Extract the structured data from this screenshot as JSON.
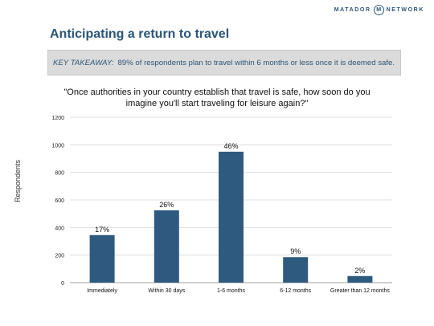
{
  "brand": {
    "left": "MATADOR",
    "right": "NETWORK",
    "logo_glyph": "M"
  },
  "slide_title": "Anticipating a return to travel",
  "takeaway": {
    "label": "KEY TAKEAWAY:",
    "text": "89% of respondents plan to travel within 6 months or less once it is deemed safe."
  },
  "colors": {
    "bar": "#2e5a80",
    "title": "#2b5577",
    "takeaway_text": "#2b5577",
    "grid": "#d9d9d9"
  },
  "chart_data": {
    "type": "bar",
    "title_line1": "\"Once authorities in your country establish that travel is safe, how soon do you",
    "title_line2": "imagine you'll start traveling for leisure again?\"",
    "xlabel": "",
    "ylabel": "Respondents",
    "ylim": [
      0,
      1200
    ],
    "yticks": [
      "0",
      "200",
      "400",
      "600",
      "800",
      "1000",
      "1200"
    ],
    "grid": true,
    "legend": "none",
    "categories": [
      "Immediately",
      "Within 30 days",
      "1-6 months",
      "6-12 months",
      "Greater than 12 months"
    ],
    "values": [
      345,
      525,
      950,
      185,
      48
    ],
    "data_labels": [
      "17%",
      "26%",
      "46%",
      "9%",
      "2%"
    ]
  }
}
